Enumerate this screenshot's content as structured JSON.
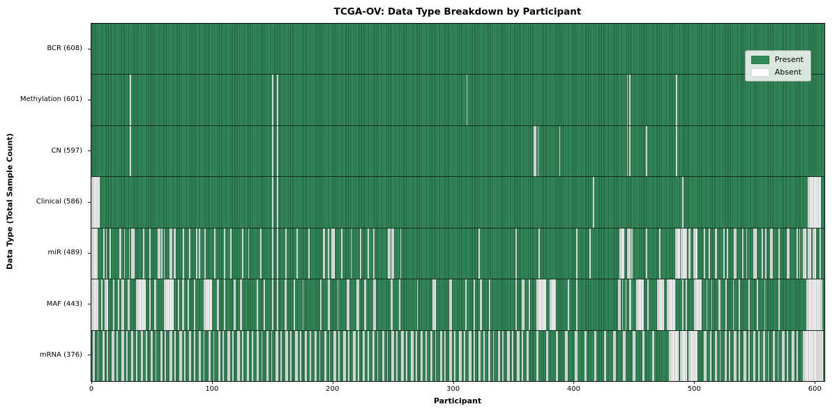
{
  "chart_data": {
    "type": "heatmap",
    "title": "TCGA-OV: Data Type Breakdown by Participant",
    "xlabel": "Participant",
    "ylabel": "Data Type (Total Sample Count)",
    "x_ticks": [
      0,
      100,
      200,
      300,
      400,
      500,
      600
    ],
    "x_max": 608,
    "n_participants": 608,
    "grid": false,
    "legend_position": "upper right",
    "legend": [
      {
        "label": "Present",
        "color": "#2e8b57"
      },
      {
        "label": "Absent",
        "color": "#ffffff"
      }
    ],
    "colors": {
      "present": "#2e8b57",
      "absent": "#ffffff",
      "bar_edge": "#1c3f2b",
      "figure_bg": "#ffffff"
    },
    "rows": [
      {
        "key": "bcr",
        "label": "BCR (608)",
        "present_count": 608,
        "absent_count": 0,
        "absent_ranges": []
      },
      {
        "key": "methylation",
        "label": "Methylation (601)",
        "present_count": 601,
        "absent_count": 7,
        "absent_ranges": [
          [
            32,
            32
          ],
          [
            150,
            150
          ],
          [
            154,
            154
          ],
          [
            311,
            311
          ],
          [
            444,
            444
          ],
          [
            446,
            446
          ],
          [
            485,
            485
          ]
        ]
      },
      {
        "key": "cn",
        "label": "CN (597)",
        "present_count": 597,
        "absent_count": 11,
        "absent_ranges": [
          [
            32,
            32
          ],
          [
            150,
            150
          ],
          [
            154,
            154
          ],
          [
            367,
            368
          ],
          [
            370,
            370
          ],
          [
            388,
            388
          ],
          [
            444,
            444
          ],
          [
            446,
            446
          ],
          [
            460,
            460
          ],
          [
            485,
            485
          ]
        ]
      },
      {
        "key": "clinical",
        "label": "Clinical (586)",
        "present_count": 586,
        "absent_count": 22,
        "absent_ranges": [
          [
            0,
            6
          ],
          [
            150,
            150
          ],
          [
            154,
            154
          ],
          [
            416,
            416
          ],
          [
            490,
            490
          ],
          [
            594,
            604
          ]
        ]
      },
      {
        "key": "mir",
        "label": "miR (489)",
        "present_count": 489,
        "absent_count": 119,
        "absent_ranges": [
          [
            0,
            4
          ],
          [
            10,
            10
          ],
          [
            12,
            12
          ],
          [
            15,
            15
          ],
          [
            23,
            24
          ],
          [
            27,
            27
          ],
          [
            31,
            31
          ],
          [
            33,
            35
          ],
          [
            43,
            43
          ],
          [
            48,
            48
          ],
          [
            55,
            56
          ],
          [
            58,
            58
          ],
          [
            60,
            60
          ],
          [
            65,
            66
          ],
          [
            68,
            69
          ],
          [
            76,
            76
          ],
          [
            81,
            81
          ],
          [
            87,
            87
          ],
          [
            89,
            89
          ],
          [
            94,
            94
          ],
          [
            102,
            102
          ],
          [
            110,
            110
          ],
          [
            115,
            115
          ],
          [
            125,
            125
          ],
          [
            130,
            130
          ],
          [
            140,
            140
          ],
          [
            150,
            150
          ],
          [
            154,
            154
          ],
          [
            161,
            161
          ],
          [
            170,
            170
          ],
          [
            180,
            180
          ],
          [
            192,
            193
          ],
          [
            196,
            196
          ],
          [
            199,
            201
          ],
          [
            207,
            207
          ],
          [
            215,
            215
          ],
          [
            223,
            223
          ],
          [
            229,
            229
          ],
          [
            234,
            234
          ],
          [
            246,
            247
          ],
          [
            249,
            250
          ],
          [
            256,
            256
          ],
          [
            321,
            321
          ],
          [
            352,
            352
          ],
          [
            371,
            371
          ],
          [
            402,
            402
          ],
          [
            413,
            413
          ],
          [
            438,
            441
          ],
          [
            444,
            446
          ],
          [
            448,
            448
          ],
          [
            460,
            460
          ],
          [
            471,
            471
          ],
          [
            484,
            487
          ],
          [
            489,
            493
          ],
          [
            495,
            496
          ],
          [
            499,
            502
          ],
          [
            508,
            508
          ],
          [
            512,
            512
          ],
          [
            517,
            518
          ],
          [
            524,
            524
          ],
          [
            527,
            527
          ],
          [
            533,
            534
          ],
          [
            540,
            540
          ],
          [
            543,
            543
          ],
          [
            549,
            551
          ],
          [
            556,
            556
          ],
          [
            559,
            559
          ],
          [
            563,
            564
          ],
          [
            570,
            570
          ],
          [
            577,
            578
          ],
          [
            585,
            585
          ],
          [
            587,
            587
          ],
          [
            590,
            592
          ],
          [
            594,
            596
          ],
          [
            598,
            600
          ],
          [
            604,
            604
          ]
        ]
      },
      {
        "key": "maf",
        "label": "MAF (443)",
        "present_count": 443,
        "absent_count": 165,
        "absent_ranges": [
          [
            0,
            5
          ],
          [
            8,
            8
          ],
          [
            11,
            13
          ],
          [
            18,
            18
          ],
          [
            22,
            22
          ],
          [
            25,
            26
          ],
          [
            30,
            31
          ],
          [
            37,
            44
          ],
          [
            48,
            48
          ],
          [
            52,
            53
          ],
          [
            60,
            67
          ],
          [
            72,
            72
          ],
          [
            75,
            76
          ],
          [
            80,
            80
          ],
          [
            85,
            85
          ],
          [
            93,
            99
          ],
          [
            104,
            105
          ],
          [
            110,
            110
          ],
          [
            118,
            119
          ],
          [
            123,
            124
          ],
          [
            137,
            137
          ],
          [
            143,
            143
          ],
          [
            150,
            150
          ],
          [
            154,
            154
          ],
          [
            160,
            161
          ],
          [
            168,
            168
          ],
          [
            175,
            175
          ],
          [
            190,
            190
          ],
          [
            196,
            197
          ],
          [
            204,
            204
          ],
          [
            212,
            213
          ],
          [
            220,
            221
          ],
          [
            226,
            227
          ],
          [
            234,
            235
          ],
          [
            248,
            249
          ],
          [
            255,
            255
          ],
          [
            270,
            270
          ],
          [
            283,
            285
          ],
          [
            297,
            298
          ],
          [
            310,
            310
          ],
          [
            317,
            317
          ],
          [
            322,
            323
          ],
          [
            330,
            330
          ],
          [
            352,
            352
          ],
          [
            357,
            358
          ],
          [
            363,
            363
          ],
          [
            369,
            376
          ],
          [
            380,
            384
          ],
          [
            395,
            395
          ],
          [
            402,
            402
          ],
          [
            437,
            438
          ],
          [
            440,
            440
          ],
          [
            443,
            443
          ],
          [
            446,
            447
          ],
          [
            452,
            457
          ],
          [
            461,
            461
          ],
          [
            469,
            474
          ],
          [
            477,
            483
          ],
          [
            490,
            490
          ],
          [
            493,
            493
          ],
          [
            500,
            505
          ],
          [
            510,
            510
          ],
          [
            514,
            514
          ],
          [
            520,
            521
          ],
          [
            526,
            526
          ],
          [
            532,
            532
          ],
          [
            537,
            537
          ],
          [
            545,
            545
          ],
          [
            552,
            552
          ],
          [
            558,
            558
          ],
          [
            570,
            570
          ],
          [
            593,
            605
          ]
        ]
      },
      {
        "key": "mrna",
        "label": "mRNA (376)",
        "present_count": 376,
        "absent_count": 232,
        "absent_ranges": [
          [
            1,
            2
          ],
          [
            5,
            5
          ],
          [
            9,
            10
          ],
          [
            13,
            13
          ],
          [
            17,
            18
          ],
          [
            21,
            21
          ],
          [
            25,
            26
          ],
          [
            29,
            29
          ],
          [
            33,
            34
          ],
          [
            37,
            37
          ],
          [
            41,
            42
          ],
          [
            45,
            45
          ],
          [
            49,
            50
          ],
          [
            53,
            53
          ],
          [
            57,
            58
          ],
          [
            61,
            61
          ],
          [
            65,
            66
          ],
          [
            69,
            69
          ],
          [
            73,
            74
          ],
          [
            77,
            77
          ],
          [
            81,
            82
          ],
          [
            85,
            85
          ],
          [
            89,
            90
          ],
          [
            93,
            93
          ],
          [
            97,
            98
          ],
          [
            101,
            101
          ],
          [
            105,
            106
          ],
          [
            109,
            109
          ],
          [
            113,
            114
          ],
          [
            117,
            117
          ],
          [
            121,
            122
          ],
          [
            125,
            125
          ],
          [
            129,
            130
          ],
          [
            133,
            133
          ],
          [
            137,
            138
          ],
          [
            141,
            141
          ],
          [
            145,
            146
          ],
          [
            149,
            149
          ],
          [
            153,
            154
          ],
          [
            157,
            157
          ],
          [
            161,
            162
          ],
          [
            165,
            165
          ],
          [
            169,
            170
          ],
          [
            173,
            173
          ],
          [
            177,
            178
          ],
          [
            181,
            181
          ],
          [
            185,
            186
          ],
          [
            189,
            189
          ],
          [
            193,
            194
          ],
          [
            197,
            197
          ],
          [
            201,
            202
          ],
          [
            205,
            205
          ],
          [
            209,
            210
          ],
          [
            213,
            213
          ],
          [
            217,
            218
          ],
          [
            221,
            221
          ],
          [
            225,
            226
          ],
          [
            229,
            229
          ],
          [
            233,
            234
          ],
          [
            237,
            237
          ],
          [
            241,
            242
          ],
          [
            245,
            245
          ],
          [
            249,
            250
          ],
          [
            253,
            253
          ],
          [
            257,
            258
          ],
          [
            261,
            261
          ],
          [
            265,
            266
          ],
          [
            269,
            269
          ],
          [
            273,
            274
          ],
          [
            277,
            277
          ],
          [
            281,
            282
          ],
          [
            285,
            285
          ],
          [
            289,
            290
          ],
          [
            293,
            293
          ],
          [
            297,
            298
          ],
          [
            301,
            301
          ],
          [
            305,
            306
          ],
          [
            309,
            309
          ],
          [
            313,
            314
          ],
          [
            317,
            317
          ],
          [
            321,
            322
          ],
          [
            325,
            325
          ],
          [
            329,
            330
          ],
          [
            333,
            333
          ],
          [
            337,
            338
          ],
          [
            341,
            341
          ],
          [
            345,
            346
          ],
          [
            349,
            349
          ],
          [
            353,
            354
          ],
          [
            357,
            357
          ],
          [
            361,
            362
          ],
          [
            369,
            370
          ],
          [
            377,
            378
          ],
          [
            385,
            386
          ],
          [
            393,
            394
          ],
          [
            401,
            402
          ],
          [
            409,
            410
          ],
          [
            417,
            418
          ],
          [
            425,
            426
          ],
          [
            433,
            434
          ],
          [
            441,
            442
          ],
          [
            449,
            450
          ],
          [
            457,
            458
          ],
          [
            465,
            466
          ],
          [
            479,
            486
          ],
          [
            488,
            493
          ],
          [
            495,
            502
          ],
          [
            508,
            509
          ],
          [
            513,
            513
          ],
          [
            517,
            518
          ],
          [
            521,
            521
          ],
          [
            525,
            526
          ],
          [
            529,
            529
          ],
          [
            533,
            534
          ],
          [
            537,
            537
          ],
          [
            541,
            542
          ],
          [
            545,
            545
          ],
          [
            549,
            550
          ],
          [
            553,
            553
          ],
          [
            557,
            558
          ],
          [
            561,
            561
          ],
          [
            565,
            566
          ],
          [
            569,
            569
          ],
          [
            573,
            574
          ],
          [
            577,
            577
          ],
          [
            581,
            582
          ],
          [
            585,
            585
          ],
          [
            590,
            606
          ]
        ]
      }
    ]
  }
}
